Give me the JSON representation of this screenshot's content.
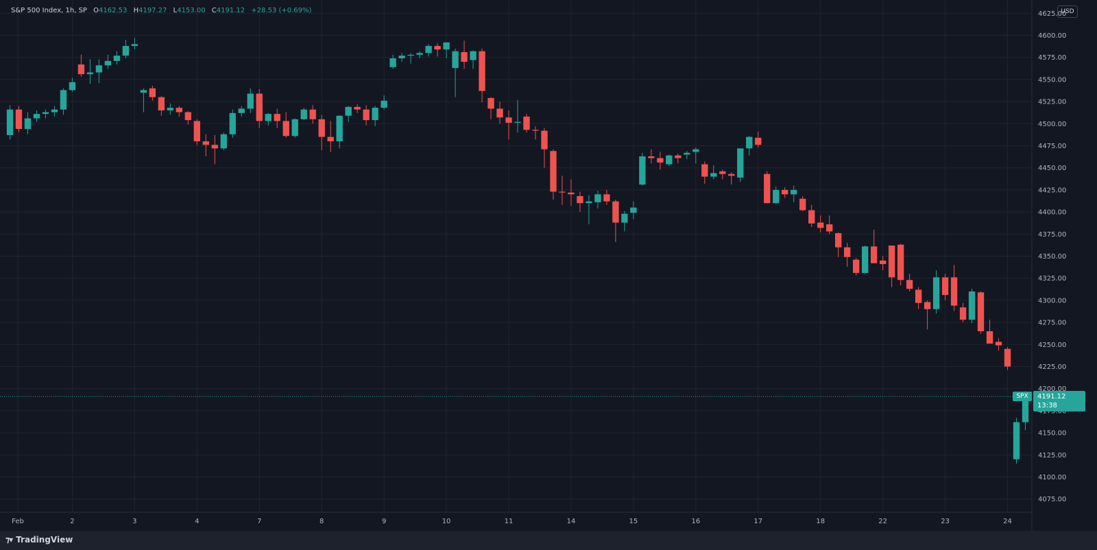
{
  "legend": {
    "symbol": "S&P 500 Index, 1h, SP",
    "open_label": "O",
    "open": "4162.53",
    "high_label": "H",
    "high": "4197.27",
    "low_label": "L",
    "low": "4153.00",
    "close_label": "C",
    "close": "4191.12",
    "change": "+28.53 (+0.69%)"
  },
  "currency": "USD",
  "last_price": {
    "symbol": "SPX",
    "price": "4191.12",
    "countdown": "13:38"
  },
  "brand": "TradingView",
  "colors": {
    "up": "#26a69a",
    "down": "#ef5350",
    "background": "#131722",
    "grid": "#1f2430"
  },
  "chart_data": {
    "type": "candlestick",
    "y_ticks": [
      "4625.00",
      "4600.00",
      "4575.00",
      "4550.00",
      "4525.00",
      "4500.00",
      "4475.00",
      "4450.00",
      "4425.00",
      "4400.00",
      "4375.00",
      "4350.00",
      "4325.00",
      "4300.00",
      "4275.00",
      "4250.00",
      "4225.00",
      "4200.00",
      "4175.00",
      "4150.00",
      "4125.00",
      "4100.00",
      "4075.00"
    ],
    "ylim": [
      4060,
      4640
    ],
    "x_ticks": [
      {
        "label": "Feb",
        "bar": 0
      },
      {
        "label": "2",
        "bar": 7
      },
      {
        "label": "3",
        "bar": 14
      },
      {
        "label": "4",
        "bar": 21
      },
      {
        "label": "7",
        "bar": 28
      },
      {
        "label": "8",
        "bar": 35
      },
      {
        "label": "9",
        "bar": 42
      },
      {
        "label": "10",
        "bar": 49
      },
      {
        "label": "11",
        "bar": 56
      },
      {
        "label": "14",
        "bar": 63
      },
      {
        "label": "15",
        "bar": 70
      },
      {
        "label": "16",
        "bar": 77
      },
      {
        "label": "17",
        "bar": 84
      },
      {
        "label": "18",
        "bar": 91
      },
      {
        "label": "22",
        "bar": 98
      },
      {
        "label": "23",
        "bar": 105
      },
      {
        "label": "24",
        "bar": 112
      }
    ],
    "ohlc": [
      [
        4487,
        4521,
        4482,
        4516
      ],
      [
        4516,
        4520,
        4490,
        4494
      ],
      [
        4494,
        4513,
        4488,
        4506
      ],
      [
        4506,
        4515,
        4502,
        4511
      ],
      [
        4511,
        4516,
        4506,
        4513
      ],
      [
        4513,
        4520,
        4508,
        4516
      ],
      [
        4516,
        4540,
        4510,
        4538
      ],
      [
        4538,
        4552,
        4536,
        4547
      ],
      [
        4567,
        4578,
        4553,
        4556
      ],
      [
        4556,
        4573,
        4545,
        4558
      ],
      [
        4558,
        4573,
        4546,
        4566
      ],
      [
        4566,
        4578,
        4562,
        4571
      ],
      [
        4571,
        4582,
        4567,
        4577
      ],
      [
        4577,
        4595,
        4574,
        4588
      ],
      [
        4588,
        4597,
        4584,
        4590
      ],
      [
        4535,
        4540,
        4513,
        4538
      ],
      [
        4540,
        4543,
        4526,
        4530
      ],
      [
        4530,
        4531,
        4509,
        4515
      ],
      [
        4515,
        4523,
        4510,
        4518
      ],
      [
        4518,
        4520,
        4508,
        4513
      ],
      [
        4513,
        4514,
        4499,
        4504
      ],
      [
        4503,
        4505,
        4476,
        4480
      ],
      [
        4480,
        4488,
        4463,
        4476
      ],
      [
        4476,
        4487,
        4454,
        4472
      ],
      [
        4472,
        4490,
        4470,
        4488
      ],
      [
        4488,
        4516,
        4484,
        4512
      ],
      [
        4512,
        4520,
        4508,
        4517
      ],
      [
        4517,
        4540,
        4512,
        4534
      ],
      [
        4534,
        4539,
        4495,
        4503
      ],
      [
        4503,
        4512,
        4498,
        4511
      ],
      [
        4511,
        4517,
        4495,
        4503
      ],
      [
        4503,
        4513,
        4484,
        4486
      ],
      [
        4486,
        4506,
        4484,
        4505
      ],
      [
        4505,
        4518,
        4504,
        4516
      ],
      [
        4516,
        4521,
        4500,
        4505
      ],
      [
        4505,
        4510,
        4470,
        4485
      ],
      [
        4485,
        4503,
        4468,
        4480
      ],
      [
        4480,
        4509,
        4472,
        4509
      ],
      [
        4509,
        4520,
        4502,
        4519
      ],
      [
        4519,
        4522,
        4512,
        4516
      ],
      [
        4516,
        4521,
        4498,
        4504
      ],
      [
        4504,
        4520,
        4497,
        4518
      ],
      [
        4518,
        4532,
        4516,
        4526
      ],
      [
        4564,
        4578,
        4562,
        4574
      ],
      [
        4574,
        4580,
        4570,
        4577
      ],
      [
        4577,
        4580,
        4568,
        4578
      ],
      [
        4578,
        4582,
        4574,
        4580
      ],
      [
        4580,
        4590,
        4576,
        4588
      ],
      [
        4588,
        4591,
        4576,
        4584
      ],
      [
        4584,
        4591,
        4574,
        4592
      ],
      [
        4563,
        4585,
        4530,
        4582
      ],
      [
        4581,
        4594,
        4562,
        4570
      ],
      [
        4572,
        4583,
        4562,
        4582
      ],
      [
        4582,
        4585,
        4524,
        4537
      ],
      [
        4529,
        4530,
        4505,
        4517
      ],
      [
        4517,
        4525,
        4500,
        4507
      ],
      [
        4507,
        4515,
        4482,
        4501
      ],
      [
        4501,
        4527,
        4490,
        4502
      ],
      [
        4508,
        4511,
        4490,
        4493
      ],
      [
        4493,
        4497,
        4482,
        4492
      ],
      [
        4492,
        4495,
        4450,
        4471
      ],
      [
        4469,
        4471,
        4414,
        4423
      ],
      [
        4423,
        4441,
        4408,
        4422
      ],
      [
        4422,
        4437,
        4407,
        4420
      ],
      [
        4418,
        4423,
        4400,
        4410
      ],
      [
        4410,
        4419,
        4386,
        4412
      ],
      [
        4411,
        4424,
        4404,
        4420
      ],
      [
        4420,
        4425,
        4408,
        4412
      ],
      [
        4412,
        4414,
        4366,
        4388
      ],
      [
        4388,
        4401,
        4378,
        4398
      ],
      [
        4399,
        4412,
        4392,
        4405
      ],
      [
        4431,
        4467,
        4430,
        4463
      ],
      [
        4463,
        4471,
        4455,
        4461
      ],
      [
        4461,
        4468,
        4448,
        4456
      ],
      [
        4454,
        4465,
        4452,
        4464
      ],
      [
        4464,
        4466,
        4455,
        4461
      ],
      [
        4465,
        4469,
        4460,
        4467
      ],
      [
        4468,
        4473,
        4455,
        4471
      ],
      [
        4454,
        4457,
        4432,
        4440
      ],
      [
        4440,
        4453,
        4437,
        4444
      ],
      [
        4446,
        4448,
        4437,
        4443
      ],
      [
        4443,
        4445,
        4431,
        4441
      ],
      [
        4439,
        4471,
        4434,
        4472
      ],
      [
        4472,
        4486,
        4464,
        4485
      ],
      [
        4484,
        4491,
        4473,
        4476
      ],
      [
        4443,
        4446,
        4410,
        4410
      ],
      [
        4410,
        4429,
        4409,
        4425
      ],
      [
        4425,
        4428,
        4416,
        4420
      ],
      [
        4420,
        4430,
        4411,
        4425
      ],
      [
        4415,
        4418,
        4401,
        4402
      ],
      [
        4402,
        4408,
        4383,
        4387
      ],
      [
        4388,
        4396,
        4377,
        4382
      ],
      [
        4386,
        4396,
        4375,
        4378
      ],
      [
        4376,
        4377,
        4349,
        4360
      ],
      [
        4360,
        4365,
        4338,
        4349
      ],
      [
        4346,
        4348,
        4328,
        4331
      ],
      [
        4331,
        4362,
        4330,
        4361
      ],
      [
        4361,
        4380,
        4344,
        4342
      ],
      [
        4345,
        4350,
        4334,
        4341
      ],
      [
        4362,
        4362,
        4315,
        4326
      ],
      [
        4363,
        4364,
        4317,
        4323
      ],
      [
        4323,
        4330,
        4310,
        4313
      ],
      [
        4312,
        4315,
        4290,
        4297
      ],
      [
        4298,
        4300,
        4267,
        4290
      ],
      [
        4290,
        4334,
        4285,
        4326
      ],
      [
        4326,
        4330,
        4300,
        4306
      ],
      [
        4326,
        4340,
        4288,
        4294
      ],
      [
        4292,
        4297,
        4275,
        4278
      ],
      [
        4278,
        4313,
        4274,
        4310
      ],
      [
        4309,
        4310,
        4262,
        4265
      ],
      [
        4265,
        4278,
        4251,
        4251
      ],
      [
        4253,
        4257,
        4243,
        4249
      ],
      [
        4245,
        4247,
        4221,
        4225
      ],
      [
        4120,
        4167,
        4115,
        4162
      ],
      [
        4162,
        4197,
        4153,
        4191
      ]
    ]
  }
}
